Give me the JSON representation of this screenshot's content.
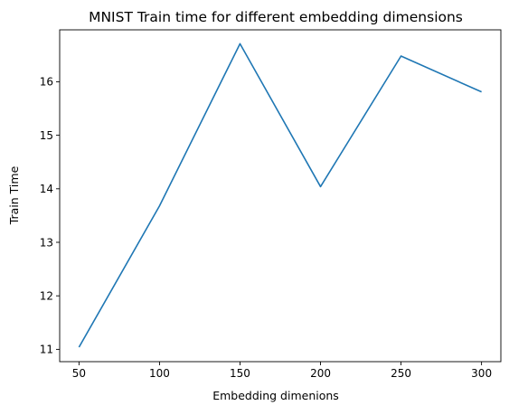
{
  "chart_data": {
    "type": "line",
    "title": "MNIST Train time for different embedding dimensions",
    "xlabel": "Embedding dimenions",
    "ylabel": "Train Time",
    "xlim": [
      38,
      312
    ],
    "ylim": [
      10.77,
      16.97
    ],
    "xticks": [
      50,
      100,
      150,
      200,
      250,
      300
    ],
    "yticks": [
      11,
      12,
      13,
      14,
      15,
      16
    ],
    "grid": false,
    "series": [
      {
        "color": "#1f77b4",
        "x": [
          50,
          100,
          150,
          200,
          250,
          300
        ],
        "y": [
          11.04,
          13.68,
          16.71,
          14.04,
          16.48,
          15.81
        ]
      }
    ]
  }
}
